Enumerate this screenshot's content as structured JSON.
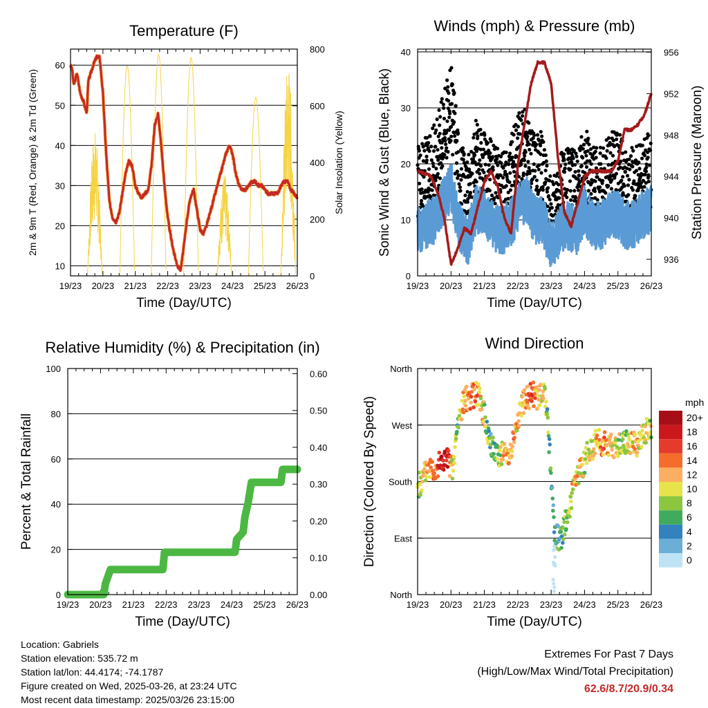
{
  "chart_data": [
    {
      "type": "line",
      "title": "Temperature (F)",
      "xlabel": "Time (Day/UTC)",
      "ylabel": "2m & 9m T (Red, Orange) & 2m Td (Green)",
      "y2label": "Solar Insolation (Yellow)",
      "x_ticks": [
        "19/23",
        "20/23",
        "21/23",
        "22/23",
        "23/23",
        "24/23",
        "25/23",
        "26/23"
      ],
      "xlim": [
        0,
        7
      ],
      "ylim": [
        7.5,
        64
      ],
      "y_ticks": [
        10,
        20,
        30,
        40,
        50,
        60
      ],
      "y2lim": [
        0,
        800
      ],
      "y2_ticks": [
        0,
        200,
        400,
        600,
        800
      ],
      "grid": true,
      "series": [
        {
          "name": "2m T",
          "color": "#c62828",
          "x": [
            0,
            0.05,
            0.1,
            0.2,
            0.3,
            0.4,
            0.5,
            0.55,
            0.7,
            0.8,
            0.9,
            1.0,
            1.1,
            1.2,
            1.3,
            1.4,
            1.5,
            1.6,
            1.7,
            1.8,
            1.9,
            2.0,
            2.1,
            2.2,
            2.3,
            2.4,
            2.5,
            2.6,
            2.7,
            2.8,
            2.9,
            3.0,
            3.1,
            3.2,
            3.3,
            3.4,
            3.5,
            3.6,
            3.7,
            3.8,
            3.9,
            4.0,
            4.1,
            4.2,
            4.3,
            4.4,
            4.5,
            4.6,
            4.7,
            4.8,
            4.9,
            5.0,
            5.1,
            5.2,
            5.3,
            5.4,
            5.5,
            5.6,
            5.7,
            5.8,
            5.9,
            6.0,
            6.1,
            6.2,
            6.3,
            6.4,
            6.5,
            6.6,
            6.7,
            6.8,
            6.9,
            7.0
          ],
          "y": [
            60,
            59,
            55,
            58,
            53,
            51,
            48,
            56,
            60,
            62,
            62,
            53,
            38,
            26,
            22,
            21,
            23,
            28,
            33,
            36,
            35,
            30,
            28,
            27,
            28,
            29,
            35,
            45,
            48,
            40,
            30,
            22,
            17,
            13,
            10,
            9,
            15,
            22,
            27,
            29,
            24,
            19,
            18,
            20,
            23,
            26,
            29,
            32,
            35,
            38,
            40,
            38,
            33,
            30,
            29,
            29,
            30,
            31,
            31,
            30,
            30,
            29,
            28,
            28,
            28,
            28,
            30,
            31,
            31,
            29,
            28,
            27
          ]
        },
        {
          "name": "Solar Insolation",
          "color": "#f5d442",
          "axis": "y2",
          "peaks": [
            {
              "x": 0.75,
              "v": 520
            },
            {
              "x": 1.75,
              "v": 740
            },
            {
              "x": 2.72,
              "v": 780
            },
            {
              "x": 3.72,
              "v": 770
            },
            {
              "x": 4.75,
              "v": 360
            },
            {
              "x": 5.72,
              "v": 630
            },
            {
              "x": 6.72,
              "v": 760
            }
          ]
        }
      ]
    },
    {
      "type": "scatter",
      "title": "Winds (mph) & Pressure (mb)",
      "xlabel": "Time (Day/UTC)",
      "ylabel": "Sonic Wind & Gust (Blue, Black)",
      "y2label": "Station Pressure (Maroon)",
      "x_ticks": [
        "19/23",
        "20/23",
        "21/23",
        "22/23",
        "23/23",
        "24/23",
        "25/23",
        "26/23"
      ],
      "xlim": [
        0,
        7
      ],
      "ylim": [
        0,
        40.5
      ],
      "y_ticks": [
        0,
        10,
        20,
        30,
        40
      ],
      "y2lim": [
        934.4,
        956.3
      ],
      "y2_ticks": [
        936,
        940,
        944,
        948,
        952,
        956
      ],
      "grid": true,
      "series": [
        {
          "name": "Sonic Wind",
          "color": "#5b9bd5",
          "x": [
            0,
            0.25,
            0.5,
            0.75,
            1.0,
            1.25,
            1.5,
            1.75,
            2.0,
            2.25,
            2.5,
            2.75,
            3.0,
            3.25,
            3.5,
            3.75,
            4.0,
            4.25,
            4.5,
            4.75,
            5.0,
            5.25,
            5.5,
            5.75,
            6.0,
            6.25,
            6.5,
            6.75,
            7.0
          ],
          "y": [
            8,
            9,
            10,
            13,
            16,
            9,
            6,
            12,
            11,
            9,
            8,
            9,
            12,
            14,
            10,
            10,
            5,
            8,
            9,
            8,
            12,
            9,
            9,
            11,
            11,
            9,
            9,
            11,
            12
          ]
        },
        {
          "name": "Gust",
          "color": "#000000",
          "x": [
            0,
            0.25,
            0.5,
            0.75,
            1.0,
            1.25,
            1.5,
            1.75,
            2.0,
            2.25,
            2.5,
            2.75,
            3.0,
            3.25,
            3.5,
            3.75,
            4.0,
            4.25,
            4.5,
            4.75,
            5.0,
            5.25,
            5.5,
            5.75,
            6.0,
            6.25,
            6.5,
            6.75,
            7.0
          ],
          "y": [
            17,
            18,
            20,
            25,
            31,
            18,
            14,
            21,
            19,
            17,
            15,
            17,
            22,
            23,
            18,
            19,
            10,
            15,
            17,
            15,
            20,
            17,
            16,
            19,
            19,
            16,
            16,
            18,
            19
          ]
        },
        {
          "name": "Station Pressure",
          "color": "#a31b1b",
          "axis": "y2",
          "x": [
            0,
            0.2,
            0.4,
            0.6,
            0.8,
            1.0,
            1.2,
            1.4,
            1.6,
            1.8,
            2.0,
            2.2,
            2.4,
            2.6,
            2.8,
            3.0,
            3.2,
            3.4,
            3.6,
            3.8,
            4.0,
            4.2,
            4.4,
            4.6,
            4.8,
            5.0,
            5.2,
            5.4,
            5.6,
            5.8,
            6.0,
            6.2,
            6.4,
            6.6,
            6.8,
            7.0
          ],
          "y": [
            944.5,
            944.3,
            944,
            942.5,
            940,
            935.5,
            937,
            939,
            938.5,
            941,
            943.5,
            944.5,
            943,
            940,
            938.5,
            945,
            949,
            953,
            955,
            955,
            953,
            946,
            940.5,
            939.2,
            941.5,
            944,
            944.5,
            944.5,
            944.5,
            944.5,
            945.5,
            948.5,
            948.5,
            949,
            950,
            952
          ]
        }
      ]
    },
    {
      "type": "line",
      "title": "Relative Humidity (%) & Precipitation (in)",
      "xlabel": "Time (Day/UTC)",
      "ylabel": "Percent & Total Rainfall",
      "x_ticks": [
        "19/23",
        "20/23",
        "21/23",
        "22/23",
        "23/23",
        "24/23",
        "25/23",
        "26/23"
      ],
      "xlim": [
        0,
        7
      ],
      "ylim": [
        0,
        100
      ],
      "y_ticks": [
        0,
        20,
        40,
        60,
        80,
        100
      ],
      "y2lim": [
        0,
        0.614
      ],
      "y2_ticks": [
        "0.00",
        "0.10",
        "0.20",
        "0.30",
        "0.40",
        "0.50",
        "0.60"
      ],
      "grid": true,
      "series": [
        {
          "name": "Total Rainfall",
          "color": "#4cb843",
          "axis": "y2",
          "x": [
            0,
            1.1,
            1.15,
            1.3,
            2.9,
            2.95,
            5.1,
            5.15,
            5.35,
            5.4,
            5.5,
            5.6,
            6.5,
            6.55,
            7.0
          ],
          "y": [
            0,
            0,
            0.03,
            0.068,
            0.068,
            0.115,
            0.115,
            0.15,
            0.17,
            0.21,
            0.25,
            0.305,
            0.305,
            0.34,
            0.34
          ]
        }
      ]
    },
    {
      "type": "scatter",
      "title": "Wind Direction",
      "xlabel": "Time (Day/UTC)",
      "ylabel": "Direction (Colored By Speed)",
      "x_ticks": [
        "19/23",
        "20/23",
        "21/23",
        "22/23",
        "23/23",
        "24/23",
        "25/23",
        "26/23"
      ],
      "y_ticks": [
        "North",
        "East",
        "South",
        "West",
        "North"
      ],
      "xlim": [
        0,
        7
      ],
      "ylim": [
        0,
        360
      ],
      "legend_title": "mph",
      "legend_labels": [
        "20+",
        "18",
        "16",
        "14",
        "12",
        "10",
        "8",
        "6",
        "4",
        "2",
        "0"
      ],
      "legend_colors": [
        "#a50f15",
        "#cb181d",
        "#e53b2c",
        "#f46d2b",
        "#fdae61",
        "#e8e34a",
        "#8cc63f",
        "#41ab5d",
        "#3182bd",
        "#6baed6",
        "#bde3f5"
      ],
      "series": [
        {
          "name": "Direction",
          "x": [
            0.1,
            0.3,
            0.5,
            0.7,
            0.9,
            1.05,
            1.2,
            1.4,
            1.6,
            1.8,
            2.0,
            2.2,
            2.4,
            2.6,
            2.8,
            3.1,
            3.4,
            3.6,
            3.8,
            3.9,
            4.1,
            4.3,
            4.5,
            4.7,
            4.9,
            5.1,
            5.4,
            5.6,
            5.8,
            6.0,
            6.2,
            6.4,
            6.6,
            6.8,
            6.95
          ],
          "y": [
            175,
            205,
            200,
            210,
            215,
            195,
            270,
            310,
            315,
            320,
            285,
            235,
            225,
            225,
            230,
            300,
            320,
            315,
            320,
            280,
            95,
            90,
            130,
            175,
            200,
            225,
            245,
            240,
            240,
            235,
            245,
            240,
            235,
            260,
            265
          ],
          "speed": [
            8,
            12,
            13,
            19,
            18,
            9,
            7,
            12,
            14,
            13,
            9,
            5,
            8,
            11,
            13,
            11,
            16,
            12,
            9,
            7,
            4,
            5,
            9,
            12,
            11,
            8,
            12,
            13,
            11,
            9,
            8,
            11,
            12,
            10,
            9
          ]
        }
      ]
    }
  ],
  "info": {
    "location": "Location: Gabriels",
    "elevation": "Station elevation: 535.72 m",
    "latlon": "Station lat/lon: 44.4174; -74.1787",
    "created": "Figure created on Wed, 2025-03-26, at 23:24 UTC",
    "recent": "Most recent data timestamp: 2025/03/26 23:15:00"
  },
  "extremes": {
    "line1": "Extremes For Past 7 Days",
    "line2": "(High/Low/Max Wind/Total Precipitation)",
    "values": "62.6/8.7/20.9/0.34"
  }
}
